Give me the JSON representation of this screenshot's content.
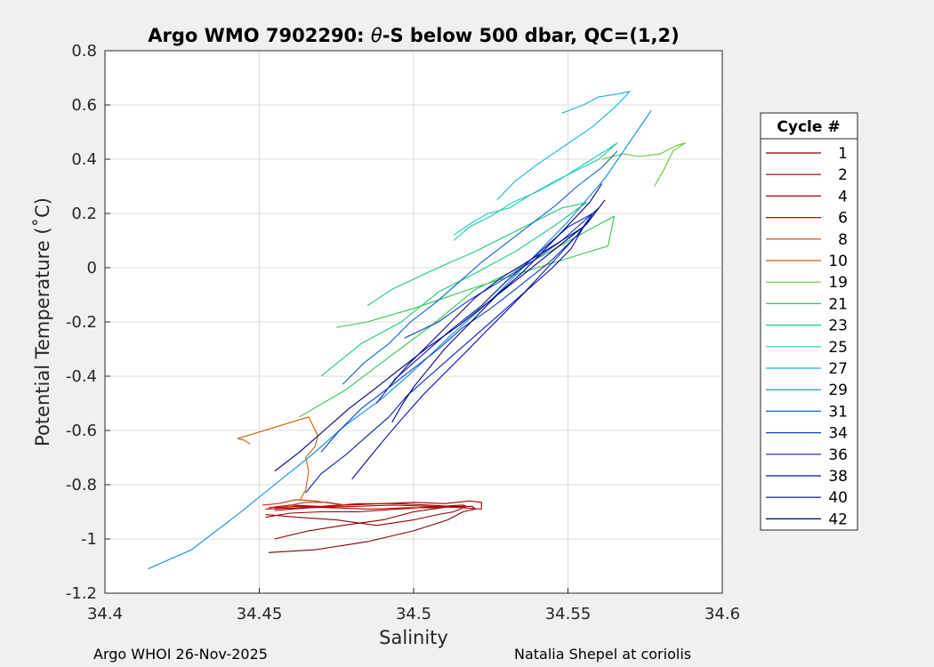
{
  "chart_data": {
    "type": "line",
    "title_prefix": "Argo WMO 7902290: ",
    "title_symbol": "θ",
    "title_suffix": "-S below 500 dbar,  QC=(1,2)",
    "xlabel": "Salinity",
    "ylabel": "Potential Temperature (˚C)",
    "xlim": [
      34.4,
      34.6
    ],
    "ylim": [
      -1.2,
      0.8
    ],
    "xticks": [
      "34.4",
      "34.45",
      "34.5",
      "34.55",
      "34.6"
    ],
    "yticks": [
      "0.8",
      "0.6",
      "0.4",
      "0.2",
      "0",
      "-0.2",
      "-0.4",
      "-0.6",
      "-0.8",
      "-1",
      "-1.2"
    ],
    "grid": true,
    "legend_title": "Cycle #",
    "legend_position": "right, outside",
    "series": [
      {
        "name": "1",
        "color": "#800000",
        "x": [
          34.453,
          34.468,
          34.485,
          34.5,
          34.511,
          34.516,
          34.52,
          34.519,
          34.512,
          34.5,
          34.49,
          34.477,
          34.466,
          34.455
        ],
        "y": [
          -1.05,
          -1.04,
          -1.01,
          -0.97,
          -0.93,
          -0.9,
          -0.89,
          -0.88,
          -0.88,
          -0.9,
          -0.93,
          -0.95,
          -0.97,
          -1.0
        ]
      },
      {
        "name": "2",
        "color": "#950000",
        "x": [
          34.452,
          34.462,
          34.475,
          34.488,
          34.5,
          34.508,
          34.513,
          34.517,
          34.516,
          34.508,
          34.495,
          34.482,
          34.47,
          34.46,
          34.452
        ],
        "y": [
          -0.91,
          -0.92,
          -0.93,
          -0.95,
          -0.93,
          -0.91,
          -0.9,
          -0.88,
          -0.875,
          -0.88,
          -0.89,
          -0.9,
          -0.9,
          -0.905,
          -0.92
        ]
      },
      {
        "name": "4",
        "color": "#aa0000",
        "x": [
          34.452,
          34.464,
          34.478,
          34.49,
          34.5,
          34.51,
          34.518,
          34.522,
          34.522,
          34.516,
          34.506,
          34.494,
          34.48,
          34.466,
          34.455
        ],
        "y": [
          -0.89,
          -0.885,
          -0.875,
          -0.87,
          -0.865,
          -0.87,
          -0.86,
          -0.865,
          -0.89,
          -0.885,
          -0.88,
          -0.875,
          -0.88,
          -0.885,
          -0.895
        ]
      },
      {
        "name": "6",
        "color": "#bf0000",
        "x": [
          34.453,
          34.46,
          34.47,
          34.482,
          34.495,
          34.505,
          34.512,
          34.508,
          34.498,
          34.486,
          34.473,
          34.462,
          34.455
        ],
        "y": [
          -0.885,
          -0.875,
          -0.88,
          -0.87,
          -0.87,
          -0.875,
          -0.88,
          -0.885,
          -0.885,
          -0.89,
          -0.885,
          -0.88,
          -0.885
        ]
      },
      {
        "name": "8",
        "color": "#c83a00",
        "x": [
          34.451,
          34.456,
          34.462,
          34.468,
          34.474,
          34.478,
          34.472,
          34.465,
          34.458
        ],
        "y": [
          -0.875,
          -0.87,
          -0.855,
          -0.86,
          -0.87,
          -0.875,
          -0.865,
          -0.865,
          -0.88
        ]
      },
      {
        "name": "10",
        "color": "#c86400",
        "x": [
          34.463,
          34.465,
          34.466,
          34.465,
          34.468,
          34.469,
          34.466,
          34.443,
          34.445,
          34.447
        ],
        "y": [
          -0.86,
          -0.82,
          -0.75,
          -0.7,
          -0.66,
          -0.62,
          -0.55,
          -0.63,
          -0.635,
          -0.65
        ]
      },
      {
        "name": "19",
        "color": "#64c828",
        "x": [
          34.561,
          34.568,
          34.573,
          34.58,
          34.585,
          34.588,
          34.584,
          34.581,
          34.578
        ],
        "y": [
          0.4,
          0.42,
          0.41,
          0.42,
          0.45,
          0.46,
          0.43,
          0.36,
          0.3
        ]
      },
      {
        "name": "21",
        "color": "#32c850",
        "x": [
          34.463,
          34.478,
          34.492,
          34.505,
          34.52,
          34.538,
          34.552,
          34.565,
          34.563,
          34.54,
          34.518,
          34.5,
          34.485,
          34.475
        ],
        "y": [
          -0.55,
          -0.45,
          -0.33,
          -0.22,
          -0.08,
          0.02,
          0.11,
          0.19,
          0.08,
          0.0,
          -0.08,
          -0.15,
          -0.2,
          -0.22
        ]
      },
      {
        "name": "23",
        "color": "#1ec878",
        "x": [
          34.47,
          34.483,
          34.496,
          34.508,
          34.52,
          34.533,
          34.545,
          34.556,
          34.548,
          34.534,
          34.52,
          34.506,
          34.493,
          34.485
        ],
        "y": [
          -0.4,
          -0.28,
          -0.2,
          -0.09,
          -0.02,
          0.06,
          0.15,
          0.24,
          0.22,
          0.14,
          0.06,
          -0.01,
          -0.08,
          -0.14
        ]
      },
      {
        "name": "25",
        "color": "#1ec8b4",
        "x": [
          34.513,
          34.518,
          34.524,
          34.531,
          34.538,
          34.546,
          34.553,
          34.56,
          34.566,
          34.562,
          34.555,
          34.548,
          34.54,
          34.532,
          34.525,
          34.518,
          34.513
        ],
        "y": [
          0.12,
          0.16,
          0.2,
          0.22,
          0.27,
          0.32,
          0.36,
          0.4,
          0.46,
          0.43,
          0.38,
          0.33,
          0.28,
          0.24,
          0.19,
          0.15,
          0.1
        ]
      },
      {
        "name": "27",
        "color": "#14b4dc",
        "x": [
          34.548,
          34.555,
          34.56,
          34.566,
          34.57,
          34.566,
          34.558,
          34.549,
          34.54,
          34.533,
          34.527
        ],
        "y": [
          0.57,
          0.6,
          0.63,
          0.64,
          0.65,
          0.6,
          0.52,
          0.45,
          0.38,
          0.32,
          0.25
        ]
      },
      {
        "name": "29",
        "color": "#0a8cdc",
        "x": [
          34.414,
          34.42,
          34.428,
          34.443,
          34.455,
          34.467,
          34.478,
          34.49,
          34.5,
          34.512,
          34.525,
          34.538,
          34.55,
          34.562,
          34.571,
          34.577
        ],
        "y": [
          -1.11,
          -1.08,
          -1.04,
          -0.91,
          -0.8,
          -0.69,
          -0.58,
          -0.48,
          -0.38,
          -0.25,
          -0.12,
          0.03,
          0.17,
          0.33,
          0.48,
          0.58
        ]
      },
      {
        "name": "31",
        "color": "#0a64d2",
        "x": [
          34.477,
          34.484,
          34.492,
          34.499,
          34.507,
          34.515,
          34.522,
          34.53,
          34.538,
          34.546,
          34.553,
          34.561,
          34.566
        ],
        "y": [
          -0.43,
          -0.35,
          -0.28,
          -0.2,
          -0.13,
          -0.05,
          0.02,
          0.09,
          0.16,
          0.23,
          0.3,
          0.37,
          0.43
        ]
      },
      {
        "name": "34",
        "color": "#0a3cc8",
        "x": [
          34.47,
          34.476,
          34.483,
          34.491,
          34.499,
          34.508,
          34.516,
          34.525,
          34.534,
          34.544,
          34.553,
          34.56,
          34.556,
          34.548,
          34.538,
          34.528,
          34.518,
          34.508,
          34.497
        ],
        "y": [
          -0.68,
          -0.6,
          -0.52,
          -0.45,
          -0.38,
          -0.3,
          -0.22,
          -0.15,
          -0.07,
          0.02,
          0.12,
          0.22,
          0.18,
          0.1,
          0.02,
          -0.05,
          -0.12,
          -0.2,
          -0.26
        ]
      },
      {
        "name": "36",
        "color": "#0a1eb4",
        "x": [
          34.465,
          34.47,
          34.478,
          34.485,
          34.492,
          34.498,
          34.505,
          34.512,
          34.52,
          34.528,
          34.536,
          34.545,
          34.553,
          34.558,
          34.55,
          34.54,
          34.53,
          34.522,
          34.512,
          34.502,
          34.494,
          34.488
        ],
        "y": [
          -0.83,
          -0.76,
          -0.69,
          -0.62,
          -0.55,
          -0.47,
          -0.4,
          -0.33,
          -0.25,
          -0.17,
          -0.09,
          0.02,
          0.12,
          0.2,
          0.15,
          0.05,
          -0.05,
          -0.14,
          -0.23,
          -0.33,
          -0.41,
          -0.5
        ]
      },
      {
        "name": "38",
        "color": "#0a0aa0",
        "x": [
          34.48,
          34.485,
          34.49,
          34.496,
          34.503,
          34.51,
          34.517,
          34.523,
          34.53,
          34.537,
          34.545,
          34.551,
          34.555,
          34.548,
          34.538,
          34.528,
          34.52,
          34.513,
          34.506,
          34.498,
          34.492
        ],
        "y": [
          -0.78,
          -0.71,
          -0.64,
          -0.56,
          -0.47,
          -0.39,
          -0.31,
          -0.24,
          -0.16,
          -0.08,
          0.0,
          0.07,
          0.15,
          0.1,
          0.03,
          -0.04,
          -0.11,
          -0.19,
          -0.27,
          -0.36,
          -0.44
        ]
      },
      {
        "name": "40",
        "color": "#00008c",
        "x": [
          34.493,
          34.496,
          34.5,
          34.505,
          34.51,
          34.516,
          34.522,
          34.528,
          34.535,
          34.541,
          34.547,
          34.552,
          34.557,
          34.561
        ],
        "y": [
          -0.57,
          -0.51,
          -0.44,
          -0.37,
          -0.3,
          -0.23,
          -0.16,
          -0.09,
          -0.02,
          0.05,
          0.12,
          0.18,
          0.24,
          0.31
        ]
      },
      {
        "name": "42",
        "color": "#000078",
        "x": [
          34.455,
          34.463,
          34.471,
          34.479,
          34.487,
          34.496,
          34.505,
          34.515,
          34.525,
          34.535,
          34.546,
          34.556,
          34.562
        ],
        "y": [
          -0.75,
          -0.68,
          -0.6,
          -0.52,
          -0.45,
          -0.37,
          -0.29,
          -0.21,
          -0.12,
          -0.03,
          0.07,
          0.16,
          0.25
        ]
      }
    ]
  },
  "footer": {
    "left": "Argo WHOI 26-Nov-2025",
    "right": "Natalia Shepel at coriolis"
  }
}
